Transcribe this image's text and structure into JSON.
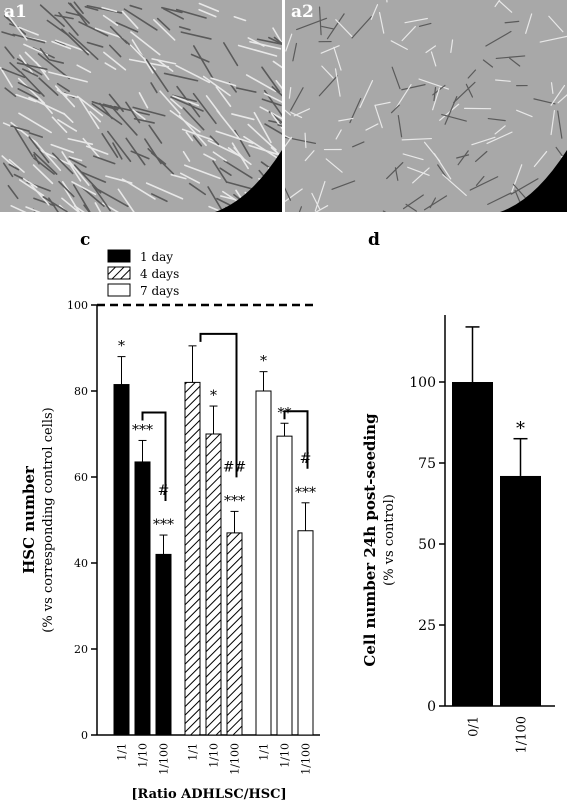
{
  "panels": {
    "a1": "a1",
    "a2": "a2",
    "c": "c",
    "d": "d"
  },
  "colors": {
    "bar_fill_black": "#000000",
    "bar_fill_white": "#ffffff",
    "micrograph_bg": "#a8a8a8"
  },
  "chart_data": [
    {
      "panel": "c",
      "type": "bar",
      "title": "",
      "ylabel": "HSC number",
      "ylabel_sub": "(% vs corresponding control cells)",
      "xlabel": "[Ratio ADHLSC/HSC]",
      "ylim": [
        0,
        100
      ],
      "yticks": [
        0,
        20,
        40,
        60,
        80,
        100
      ],
      "reference_line": 100,
      "legend_position": "top-left",
      "groups": [
        {
          "name": "1 day",
          "fill": "black",
          "categories": [
            "1/1",
            "1/10",
            "1/100"
          ],
          "values": [
            81.5,
            63.5,
            42
          ],
          "errors": [
            6.5,
            5,
            4.5
          ],
          "annotations": [
            "*",
            "***",
            "***"
          ],
          "bracket_label": "#"
        },
        {
          "name": "4 days",
          "fill": "hatched",
          "categories": [
            "1/1",
            "1/10",
            "1/100"
          ],
          "values": [
            82,
            70,
            47
          ],
          "errors": [
            8.5,
            6.5,
            5
          ],
          "annotations": [
            "",
            "*",
            "***"
          ],
          "bracket_label": "##"
        },
        {
          "name": "7 days",
          "fill": "white",
          "categories": [
            "1/1",
            "1/10",
            "1/100"
          ],
          "values": [
            80,
            69.5,
            47.5
          ],
          "errors": [
            4.5,
            3,
            6.5
          ],
          "annotations": [
            "*",
            "**",
            "***"
          ],
          "bracket_label": "#"
        }
      ]
    },
    {
      "panel": "d",
      "type": "bar",
      "title": "",
      "ylabel": "Cell number 24h post-seeding",
      "ylabel_sub": "(% vs control)",
      "xlabel": "",
      "ylim": [
        0,
        125
      ],
      "yticks": [
        0,
        25,
        50,
        75,
        100
      ],
      "categories": [
        "0/1",
        "1/100"
      ],
      "values": [
        100,
        71
      ],
      "errors": [
        17,
        11.5
      ],
      "annotations": [
        "",
        "*"
      ]
    }
  ]
}
